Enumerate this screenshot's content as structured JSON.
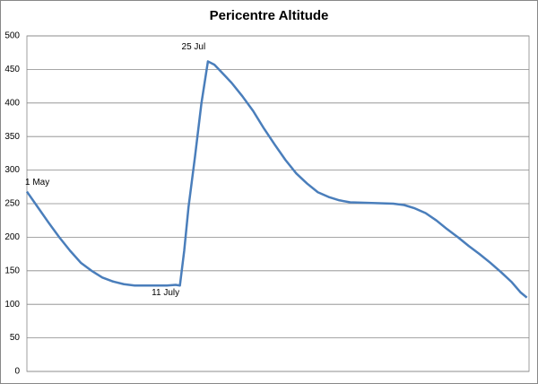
{
  "chart_data": {
    "type": "line",
    "title": "Pericentre Altitude",
    "x": [
      0,
      5,
      10,
      15,
      20,
      25,
      30,
      35,
      40,
      45,
      50,
      55,
      60,
      65,
      69,
      71,
      73,
      75,
      78,
      81,
      84,
      87,
      90,
      95,
      100,
      105,
      110,
      115,
      120,
      125,
      130,
      135,
      140,
      145,
      150,
      160,
      170,
      175,
      180,
      185,
      190,
      195,
      200,
      205,
      210,
      215,
      220,
      225,
      229,
      232
    ],
    "series": [
      {
        "name": "Pericentre Altitude",
        "color": "#4a7ebb",
        "values": [
          268,
          245,
          222,
          200,
          180,
          162,
          150,
          140,
          134,
          130,
          128,
          128,
          128,
          128,
          129,
          128,
          180,
          245,
          320,
          400,
          462,
          457,
          447,
          430,
          410,
          388,
          362,
          338,
          315,
          295,
          280,
          267,
          260,
          255,
          252,
          251,
          250,
          248,
          243,
          236,
          225,
          212,
          200,
          187,
          175,
          162,
          148,
          133,
          118,
          110
        ]
      }
    ],
    "annotations": [
      {
        "text": "1 May",
        "x": 0,
        "y": 268
      },
      {
        "text": "11 July",
        "x": 71,
        "y": 128
      },
      {
        "text": "25 Jul",
        "x": 84,
        "y": 462
      }
    ],
    "xlim": [
      0,
      233
    ],
    "ylim": [
      0,
      500
    ],
    "yticks": [
      0,
      50,
      100,
      150,
      200,
      250,
      300,
      350,
      400,
      450,
      500
    ],
    "grid": true
  }
}
